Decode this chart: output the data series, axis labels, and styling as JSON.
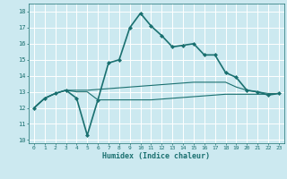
{
  "title": "",
  "xlabel": "Humidex (Indice chaleur)",
  "xlim": [
    -0.5,
    23.5
  ],
  "ylim": [
    9.8,
    18.5
  ],
  "yticks": [
    10,
    11,
    12,
    13,
    14,
    15,
    16,
    17,
    18
  ],
  "xticks": [
    0,
    1,
    2,
    3,
    4,
    5,
    6,
    7,
    8,
    9,
    10,
    11,
    12,
    13,
    14,
    15,
    16,
    17,
    18,
    19,
    20,
    21,
    22,
    23
  ],
  "bg_color": "#cce9f0",
  "grid_color": "#ffffff",
  "line_color": "#1a7070",
  "lines": [
    {
      "x": [
        0,
        1,
        2,
        3,
        4,
        5,
        6,
        7,
        8,
        9,
        10,
        11,
        12,
        13,
        14,
        15,
        16,
        17,
        18,
        19,
        20,
        21,
        22,
        23
      ],
      "y": [
        12.0,
        12.6,
        12.9,
        13.1,
        12.6,
        10.3,
        12.5,
        14.8,
        15.0,
        17.0,
        17.9,
        17.1,
        16.5,
        15.8,
        15.9,
        16.0,
        15.3,
        15.3,
        14.2,
        13.9,
        13.1,
        13.0,
        12.8,
        12.9
      ],
      "marker": "D",
      "markersize": 2.0,
      "linewidth": 1.2,
      "linestyle": "-"
    },
    {
      "x": [
        0,
        1,
        2,
        3,
        4,
        5,
        6,
        7,
        8,
        9,
        10,
        11,
        12,
        13,
        14,
        15,
        16,
        17,
        18,
        19,
        20,
        21,
        22,
        23
      ],
      "y": [
        12.0,
        12.6,
        12.9,
        13.1,
        13.1,
        13.1,
        13.15,
        13.2,
        13.25,
        13.3,
        13.35,
        13.4,
        13.45,
        13.5,
        13.55,
        13.6,
        13.6,
        13.6,
        13.6,
        13.3,
        13.1,
        13.0,
        12.9,
        12.9
      ],
      "marker": null,
      "linewidth": 0.8,
      "linestyle": "-"
    },
    {
      "x": [
        0,
        1,
        2,
        3,
        4,
        5,
        6,
        7,
        8,
        9,
        10,
        11,
        12,
        13,
        14,
        15,
        16,
        17,
        18,
        19,
        20,
        21,
        22,
        23
      ],
      "y": [
        12.0,
        12.6,
        12.9,
        13.1,
        13.0,
        13.0,
        12.5,
        12.5,
        12.5,
        12.5,
        12.5,
        12.5,
        12.55,
        12.6,
        12.65,
        12.7,
        12.75,
        12.8,
        12.85,
        12.85,
        12.85,
        12.85,
        12.85,
        12.9
      ],
      "marker": null,
      "linewidth": 0.8,
      "linestyle": "-"
    }
  ]
}
